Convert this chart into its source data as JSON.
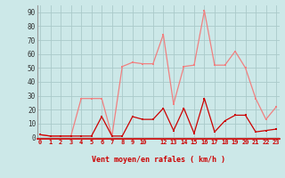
{
  "hours": [
    0,
    1,
    2,
    3,
    4,
    5,
    6,
    7,
    8,
    9,
    10,
    11,
    12,
    13,
    14,
    15,
    16,
    17,
    18,
    19,
    20,
    21,
    22,
    23
  ],
  "rafales": [
    2,
    1,
    1,
    1,
    28,
    28,
    28,
    1,
    51,
    54,
    53,
    53,
    74,
    24,
    51,
    52,
    91,
    52,
    52,
    62,
    50,
    28,
    13,
    22
  ],
  "moyen": [
    2,
    1,
    1,
    1,
    1,
    1,
    15,
    1,
    1,
    15,
    13,
    13,
    21,
    5,
    21,
    3,
    28,
    4,
    12,
    16,
    16,
    4,
    5,
    6
  ],
  "color_rafales": "#f08080",
  "color_moyen": "#cc0000",
  "bg_color": "#cce8e8",
  "grid_color": "#aacaca",
  "xlabel": "Vent moyen/en rafales ( km/h )",
  "xtick_labels": [
    "0",
    "1",
    "2",
    "3",
    "4",
    "5",
    "6",
    "7",
    "8",
    "9",
    "10",
    "",
    "12",
    "13",
    "14",
    "15",
    "16",
    "17",
    "18",
    "19",
    "20",
    "21",
    "22",
    "23"
  ],
  "ylabel_ticks": [
    0,
    10,
    20,
    30,
    40,
    50,
    60,
    70,
    80,
    90
  ],
  "xlim": [
    -0.3,
    23.3
  ],
  "ylim": [
    -1,
    95
  ]
}
